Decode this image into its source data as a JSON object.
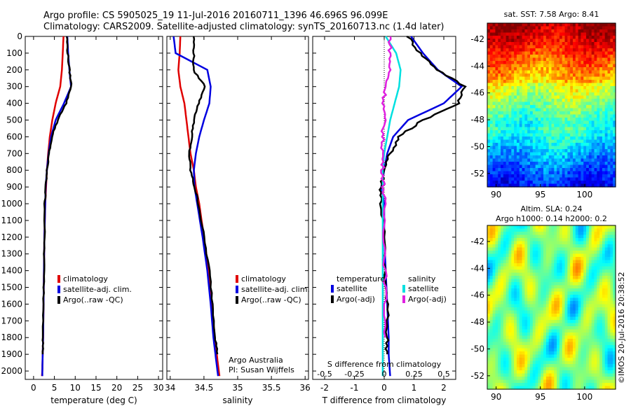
{
  "title_line1": "Argo profile: CS 5905025_19 11-Jul-2016 20160711_1396 46.696S 96.099E",
  "title_line2": "Climatology: CARS2009. Satellite-adjusted climatology: synTS_20160713.nc (1.4d later)",
  "side_label": "©IMOS 20-Jul-2016 20:38:52",
  "chart_data": [
    {
      "type": "line",
      "xlabel": "temperature (deg C)",
      "xticks": [
        0,
        5,
        10,
        15,
        20,
        25,
        30
      ],
      "xlim": [
        -2,
        31
      ],
      "ylim": [
        0,
        2050
      ],
      "yticks": [
        0,
        100,
        200,
        300,
        400,
        500,
        600,
        700,
        800,
        900,
        1000,
        1100,
        1200,
        1300,
        1400,
        1500,
        1600,
        1700,
        1800,
        1900,
        2000
      ],
      "legend": [
        "climatology",
        "satellite-adj. clim.",
        "Argo(..raw -QC)"
      ],
      "series": [
        {
          "name": "climatology",
          "color": "#e00000",
          "x": [
            7.2,
            7.0,
            6.8,
            6.4,
            5.3,
            4.5,
            3.9,
            3.5,
            3.2,
            3.0,
            2.8,
            2.6,
            2.5,
            2.4,
            2.3,
            2.2,
            2.1,
            2.0
          ],
          "y": [
            0,
            100,
            200,
            300,
            400,
            500,
            600,
            700,
            800,
            900,
            1000,
            1200,
            1400,
            1600,
            1800,
            1900,
            2000,
            2030
          ]
        },
        {
          "name": "satellite-adj. clim.",
          "color": "#0000e0",
          "x": [
            8.1,
            8.3,
            8.6,
            9.0,
            7.3,
            5.3,
            4.2,
            3.6,
            3.2,
            2.9,
            2.8,
            2.6,
            2.5,
            2.4,
            2.3,
            2.2,
            2.1,
            2.1
          ],
          "y": [
            0,
            100,
            200,
            300,
            400,
            500,
            600,
            700,
            800,
            900,
            1000,
            1200,
            1400,
            1600,
            1800,
            1900,
            2000,
            2030
          ]
        },
        {
          "name": "Argo(..raw -QC)",
          "color": "#000000",
          "x": [
            8.0,
            8.2,
            8.6,
            9.1,
            7.8,
            5.8,
            4.4,
            3.7,
            3.2,
            2.9,
            2.7,
            2.6,
            2.5,
            2.4,
            2.3,
            2.2
          ],
          "y": [
            0,
            100,
            200,
            300,
            400,
            500,
            600,
            700,
            800,
            900,
            1000,
            1200,
            1400,
            1600,
            1800,
            1900
          ]
        }
      ]
    },
    {
      "type": "line",
      "xlabel": "salinity",
      "xticks": [
        34,
        34.5,
        35,
        35.5,
        36
      ],
      "xlim": [
        33.95,
        36.05
      ],
      "ylim": [
        0,
        2050
      ],
      "legend": [
        "climatology",
        "satellite-adj. clim.",
        "Argo(..raw -QC)"
      ],
      "annotation": [
        "Argo Australia",
        "PI: Susan Wijffels"
      ],
      "series": [
        {
          "name": "climatology",
          "color": "#e00000",
          "x": [
            34.15,
            34.14,
            34.12,
            34.15,
            34.21,
            34.24,
            34.27,
            34.3,
            34.35,
            34.38,
            34.43,
            34.5,
            34.57,
            34.62,
            34.66,
            34.69,
            34.72,
            34.73
          ],
          "y": [
            0,
            100,
            200,
            300,
            400,
            500,
            600,
            700,
            800,
            900,
            1000,
            1200,
            1400,
            1600,
            1800,
            1900,
            2000,
            2030
          ]
        },
        {
          "name": "satellite-adj. clim.",
          "color": "#0000e0",
          "x": [
            34.05,
            34.08,
            34.55,
            34.6,
            34.58,
            34.5,
            34.43,
            34.38,
            34.35,
            34.36,
            34.4,
            34.48,
            34.55,
            34.6,
            34.64,
            34.67,
            34.7,
            34.71
          ],
          "y": [
            0,
            100,
            200,
            300,
            400,
            500,
            600,
            700,
            800,
            900,
            1000,
            1200,
            1400,
            1600,
            1800,
            1900,
            2000,
            2030
          ]
        },
        {
          "name": "Argo(..raw -QC)",
          "color": "#000000",
          "x": [
            34.35,
            34.35,
            34.34,
            34.52,
            34.42,
            34.35,
            34.32,
            34.28,
            34.3,
            34.36,
            34.42,
            34.5,
            34.58,
            34.63,
            34.67,
            34.7
          ],
          "y": [
            0,
            100,
            200,
            300,
            400,
            500,
            600,
            700,
            800,
            900,
            1000,
            1200,
            1400,
            1600,
            1800,
            1900
          ]
        }
      ]
    },
    {
      "type": "line",
      "xlabel": "T difference from climatology",
      "xlabel_top": "S difference from climatology",
      "xticks": [
        -2,
        -1,
        0,
        1,
        2
      ],
      "xticks_s": [
        -0.5,
        -0.25,
        0,
        0.25,
        0.5
      ],
      "xlim": [
        -2.4,
        2.4
      ],
      "ylim": [
        0,
        2050
      ],
      "legend_t_title": "temperature",
      "legend_s_title": "salinity",
      "legend_t": [
        "satellite",
        "Argo(-adj)"
      ],
      "legend_s": [
        "satellite",
        "Argo(-adj)"
      ],
      "series": [
        {
          "name": "T satellite",
          "color": "#0000e0",
          "x": [
            0.9,
            1.3,
            1.8,
            2.6,
            2.0,
            0.8,
            0.3,
            0.1,
            0.0,
            -0.1,
            0.0,
            0.0,
            0.05,
            0.1,
            0.15,
            0.15,
            0.2
          ],
          "y": [
            0,
            100,
            200,
            300,
            400,
            500,
            600,
            700,
            800,
            900,
            1000,
            1200,
            1400,
            1600,
            1800,
            1900,
            2030
          ]
        },
        {
          "name": "T Argo(-adj)",
          "color": "#000000",
          "x": [
            0.8,
            1.2,
            1.8,
            2.7,
            2.5,
            1.3,
            0.5,
            0.2,
            0.0,
            -0.1,
            -0.1,
            0.0,
            0.0,
            0.1,
            0.1,
            0.1
          ],
          "y": [
            0,
            100,
            200,
            300,
            400,
            500,
            600,
            700,
            800,
            900,
            1000,
            1200,
            1400,
            1600,
            1800,
            1900
          ]
        },
        {
          "name": "S satellite",
          "color": "#00e0e0",
          "x": [
            0.05,
            0.4,
            0.55,
            0.5,
            0.35,
            0.2,
            0.1,
            0.0,
            -0.05,
            -0.05,
            -0.05,
            -0.05,
            -0.05,
            -0.05,
            -0.05,
            -0.05,
            -0.05
          ],
          "y": [
            0,
            100,
            200,
            300,
            400,
            500,
            600,
            700,
            800,
            900,
            1000,
            1200,
            1400,
            1600,
            1800,
            1900,
            2030
          ]
        },
        {
          "name": "S Argo(-adj)",
          "color": "#e020e0",
          "x": [
            0.2,
            0.2,
            0.18,
            0.05,
            -0.02,
            0.0,
            -0.05,
            -0.05,
            -0.05,
            -0.02,
            0.0,
            0.02,
            0.03,
            0.03,
            0.04
          ],
          "y": [
            0,
            100,
            200,
            300,
            400,
            500,
            600,
            700,
            800,
            900,
            1000,
            1200,
            1400,
            1600,
            1800
          ]
        }
      ]
    },
    {
      "type": "heatmap",
      "title": "sat. SST: 7.58 Argo: 8.41",
      "xticks": [
        90,
        95,
        100
      ],
      "yticks": [
        -42,
        -44,
        -46,
        -48,
        -50,
        -52
      ],
      "xlim": [
        89,
        103.5
      ],
      "ylim": [
        -53,
        -40.8
      ],
      "colorscale": "jet"
    },
    {
      "type": "heatmap",
      "title_line1": "Altim. SLA: 0.24",
      "title_line2": "Argo h1000: 0.14 h2000: 0.2",
      "xticks": [
        90,
        95,
        100
      ],
      "yticks": [
        -42,
        -44,
        -46,
        -48,
        -50,
        -52
      ],
      "xlim": [
        89,
        103.5
      ],
      "ylim": [
        -53,
        -40.8
      ],
      "colorscale": "jet"
    }
  ]
}
